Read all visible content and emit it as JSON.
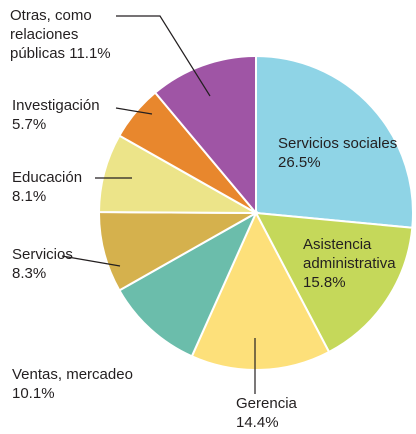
{
  "chart_data": {
    "type": "pie",
    "categories": [
      "Servicios sociales",
      "Asistencia administrativa",
      "Gerencia",
      "Ventas, mercadeo",
      "Servicios",
      "Educación",
      "Investigación",
      "Otras, como relaciones públicas"
    ],
    "values": [
      26.5,
      15.8,
      14.4,
      10.1,
      8.3,
      8.1,
      5.7,
      11.1
    ],
    "value_labels": [
      "26.5%",
      "15.8%",
      "14.4%",
      "10.1%",
      "8.3%",
      "8.1%",
      "5.7%",
      "11.1%"
    ],
    "colors": [
      "#8fd4e6",
      "#c5d85a",
      "#fde07a",
      "#6bbdab",
      "#d5b14d",
      "#ece489",
      "#e8872d",
      "#9f55a5"
    ]
  }
}
